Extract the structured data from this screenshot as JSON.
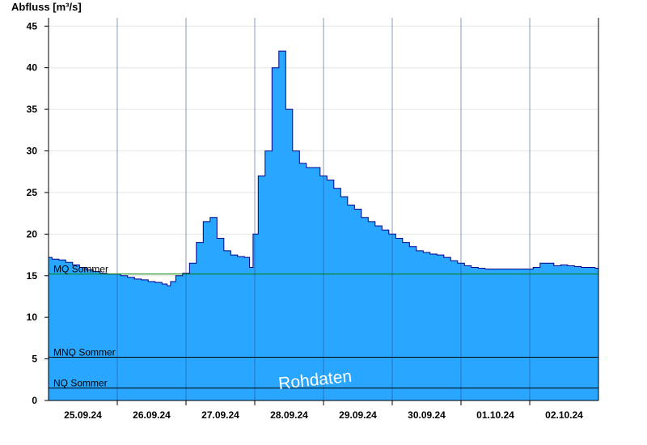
{
  "chart_data": {
    "type": "area",
    "title": "",
    "ylabel": "Abfluss [m³/s]",
    "xlabel": "",
    "ylim": [
      0,
      46
    ],
    "yticks": [
      0,
      5,
      10,
      15,
      20,
      25,
      30,
      35,
      40,
      45
    ],
    "xlim": [
      0,
      8
    ],
    "x_tick_labels": [
      "25.09.24",
      "26.09.24",
      "27.09.24",
      "28.09.24",
      "29.09.24",
      "30.09.24",
      "01.10.24",
      "02.10.24"
    ],
    "grid": true,
    "series": [
      {
        "color": "#29a6ff",
        "line_color": "#00008b",
        "x": [
          0,
          0.1,
          0.2,
          0.3,
          0.4,
          0.5,
          0.6,
          0.7,
          0.8,
          0.9,
          1.0,
          1.1,
          1.2,
          1.3,
          1.4,
          1.5,
          1.6,
          1.7,
          1.75,
          1.8,
          1.9,
          2.0,
          2.1,
          2.2,
          2.3,
          2.4,
          2.5,
          2.6,
          2.7,
          2.8,
          2.9,
          2.95,
          3.0,
          3.1,
          3.2,
          3.3,
          3.4,
          3.5,
          3.6,
          3.7,
          3.8,
          3.9,
          4.0,
          4.1,
          4.2,
          4.3,
          4.4,
          4.5,
          4.6,
          4.7,
          4.8,
          4.9,
          5.0,
          5.1,
          5.2,
          5.3,
          5.4,
          5.5,
          5.6,
          5.7,
          5.8,
          5.9,
          6.0,
          6.1,
          6.2,
          6.3,
          6.4,
          6.5,
          6.6,
          6.7,
          6.8,
          6.9,
          7.0,
          7.1,
          7.2,
          7.3,
          7.4,
          7.5,
          7.6,
          7.7,
          7.8,
          7.9,
          8.0
        ],
        "y": [
          17.2,
          17.0,
          16.9,
          16.6,
          16.3,
          16.0,
          15.7,
          15.5,
          15.3,
          15.2,
          15.2,
          15.0,
          14.8,
          14.6,
          14.5,
          14.3,
          14.2,
          14.0,
          13.8,
          14.3,
          15.0,
          15.3,
          16.5,
          19.0,
          21.5,
          22.0,
          19.5,
          18.0,
          17.5,
          17.3,
          17.2,
          16.0,
          20.0,
          27.0,
          30.0,
          40.0,
          42.0,
          35.0,
          30.0,
          28.5,
          28.0,
          28.0,
          27.0,
          26.5,
          25.5,
          24.5,
          23.5,
          23.0,
          22.0,
          21.5,
          21.0,
          20.5,
          20.0,
          19.5,
          19.0,
          18.5,
          18.0,
          17.8,
          17.6,
          17.5,
          17.2,
          16.8,
          16.5,
          16.2,
          16.0,
          15.9,
          15.8,
          15.8,
          15.8,
          15.8,
          15.8,
          15.8,
          15.8,
          16.0,
          16.5,
          16.5,
          16.2,
          16.3,
          16.2,
          16.1,
          16.0,
          16.0,
          15.9
        ]
      }
    ],
    "reference_lines": [
      {
        "label": "MQ Sommer",
        "value": 15.2,
        "color": "#008000"
      },
      {
        "label": "MNQ Sommer",
        "value": 5.2,
        "color": "#000000"
      },
      {
        "label": "NQ Sommer",
        "value": 1.5,
        "color": "#000000"
      }
    ],
    "watermark": "Rohdaten"
  }
}
